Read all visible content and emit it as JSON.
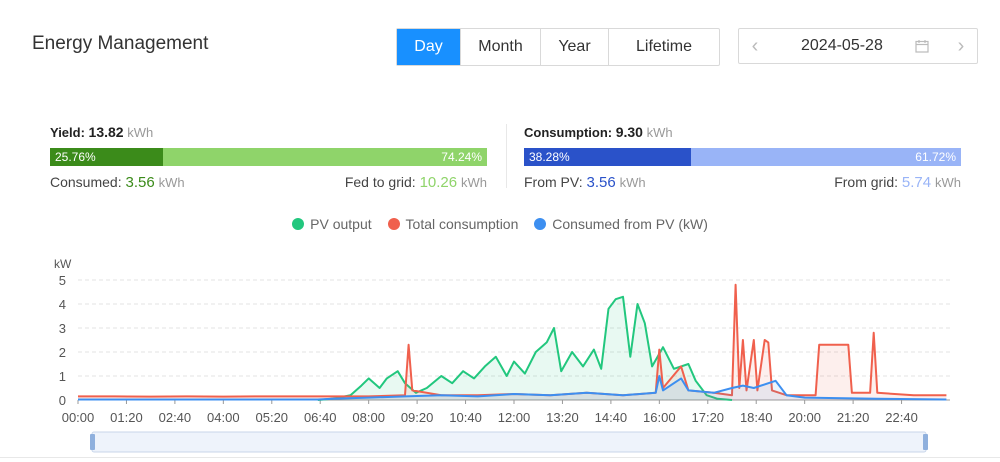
{
  "header": {
    "title": "Energy Management",
    "periods": [
      "Day",
      "Month",
      "Year",
      "Lifetime"
    ],
    "active_period": "Day",
    "date": "2024-05-28"
  },
  "yield": {
    "label": "Yield:",
    "value": "13.82",
    "unit": "kWh",
    "bar_left_pct": "25.76%",
    "bar_right_pct": "74.24%",
    "bar_left_fraction": 0.2576,
    "consumed_label": "Consumed:",
    "consumed_value": "3.56",
    "consumed_unit": "kWh",
    "fed_label": "Fed to grid:",
    "fed_value": "10.26",
    "fed_unit": "kWh"
  },
  "consumption": {
    "label": "Consumption:",
    "value": "9.30",
    "unit": "kWh",
    "bar_left_pct": "38.28%",
    "bar_right_pct": "61.72%",
    "bar_left_fraction": 0.3828,
    "from_pv_label": "From PV:",
    "from_pv_value": "3.56",
    "from_pv_unit": "kWh",
    "from_grid_label": "From grid:",
    "from_grid_value": "5.74",
    "from_grid_unit": "kWh"
  },
  "colors": {
    "accent": "#1890ff",
    "yield_dark": "#3b8b1a",
    "yield_light": "#8fd46a",
    "cons_dark": "#2a52c9",
    "cons_light": "#99b4f7",
    "pv": "#22c77e",
    "total": "#f0604d",
    "consumed_pv": "#3d8ff0"
  },
  "chart_data": {
    "type": "line",
    "ylabel": "kW",
    "ylim": [
      0,
      5
    ],
    "yticks": [
      "0",
      "1",
      "2",
      "3",
      "4",
      "5"
    ],
    "xticks": [
      "00:00",
      "01:20",
      "02:40",
      "04:00",
      "05:20",
      "06:40",
      "08:00",
      "09:20",
      "10:40",
      "12:00",
      "13:20",
      "14:40",
      "16:00",
      "17:20",
      "18:40",
      "20:00",
      "21:20",
      "22:40"
    ],
    "grid": true,
    "legend_position": "top-center",
    "series": [
      {
        "name": "PV output",
        "color": "#22c77e",
        "points": [
          [
            6.6,
            0
          ],
          [
            7.0,
            0.05
          ],
          [
            7.5,
            0.2
          ],
          [
            7.8,
            0.6
          ],
          [
            8.0,
            0.9
          ],
          [
            8.3,
            0.5
          ],
          [
            8.5,
            0.9
          ],
          [
            8.8,
            1.2
          ],
          [
            9.0,
            0.7
          ],
          [
            9.3,
            0.3
          ],
          [
            9.6,
            0.5
          ],
          [
            10.0,
            1.0
          ],
          [
            10.3,
            0.7
          ],
          [
            10.6,
            1.2
          ],
          [
            10.9,
            0.9
          ],
          [
            11.2,
            1.4
          ],
          [
            11.5,
            1.8
          ],
          [
            11.8,
            1.0
          ],
          [
            12.0,
            1.6
          ],
          [
            12.3,
            1.1
          ],
          [
            12.6,
            2.0
          ],
          [
            12.9,
            2.4
          ],
          [
            13.1,
            3.0
          ],
          [
            13.3,
            1.2
          ],
          [
            13.6,
            2.0
          ],
          [
            13.9,
            1.4
          ],
          [
            14.2,
            2.1
          ],
          [
            14.4,
            1.3
          ],
          [
            14.6,
            3.8
          ],
          [
            14.8,
            4.2
          ],
          [
            15.0,
            4.3
          ],
          [
            15.2,
            1.8
          ],
          [
            15.4,
            4.0
          ],
          [
            15.6,
            3.2
          ],
          [
            15.8,
            1.4
          ],
          [
            16.1,
            2.2
          ],
          [
            16.4,
            1.3
          ],
          [
            16.8,
            1.5
          ],
          [
            17.0,
            0.8
          ],
          [
            17.3,
            0.2
          ],
          [
            17.6,
            0.05
          ],
          [
            18.0,
            0
          ]
        ]
      },
      {
        "name": "Total consumption",
        "color": "#f0604d",
        "points": [
          [
            0,
            0.15
          ],
          [
            1,
            0.15
          ],
          [
            2,
            0.14
          ],
          [
            3,
            0.15
          ],
          [
            4,
            0.14
          ],
          [
            5,
            0.15
          ],
          [
            6,
            0.15
          ],
          [
            7,
            0.15
          ],
          [
            8,
            0.15
          ],
          [
            9.0,
            0.2
          ],
          [
            9.1,
            2.3
          ],
          [
            9.2,
            0.4
          ],
          [
            10,
            0.2
          ],
          [
            11,
            0.2
          ],
          [
            12,
            0.25
          ],
          [
            13,
            0.2
          ],
          [
            14,
            0.3
          ],
          [
            15,
            0.2
          ],
          [
            15.9,
            0.3
          ],
          [
            16.0,
            2.1
          ],
          [
            16.1,
            0.5
          ],
          [
            16.6,
            1.4
          ],
          [
            16.8,
            0.4
          ],
          [
            17.5,
            0.3
          ],
          [
            18.0,
            0.2
          ],
          [
            18.1,
            4.8
          ],
          [
            18.2,
            0.5
          ],
          [
            18.3,
            2.5
          ],
          [
            18.4,
            0.4
          ],
          [
            18.6,
            2.5
          ],
          [
            18.7,
            0.4
          ],
          [
            18.9,
            2.5
          ],
          [
            19.0,
            2.4
          ],
          [
            19.1,
            0.4
          ],
          [
            19.5,
            0.2
          ],
          [
            20.3,
            0.2
          ],
          [
            20.4,
            2.3
          ],
          [
            21.2,
            2.3
          ],
          [
            21.3,
            0.3
          ],
          [
            21.8,
            0.3
          ],
          [
            21.9,
            2.8
          ],
          [
            22.0,
            0.3
          ],
          [
            23,
            0.2
          ],
          [
            23.9,
            0.2
          ]
        ]
      },
      {
        "name": "Consumed from PV (kW)",
        "color": "#3d8ff0",
        "points": [
          [
            0,
            0.02
          ],
          [
            6.6,
            0.02
          ],
          [
            7.0,
            0.05
          ],
          [
            8,
            0.1
          ],
          [
            9,
            0.15
          ],
          [
            10,
            0.2
          ],
          [
            11,
            0.15
          ],
          [
            12,
            0.25
          ],
          [
            13,
            0.2
          ],
          [
            14,
            0.3
          ],
          [
            15,
            0.2
          ],
          [
            15.9,
            0.3
          ],
          [
            16.0,
            1.0
          ],
          [
            16.1,
            0.4
          ],
          [
            16.6,
            0.9
          ],
          [
            16.8,
            0.4
          ],
          [
            17.5,
            0.3
          ],
          [
            18.0,
            0.5
          ],
          [
            18.3,
            0.6
          ],
          [
            18.6,
            0.5
          ],
          [
            19.2,
            0.8
          ],
          [
            19.5,
            0.2
          ],
          [
            20,
            0.1
          ],
          [
            22,
            0.05
          ],
          [
            23.9,
            0.02
          ]
        ]
      }
    ]
  }
}
